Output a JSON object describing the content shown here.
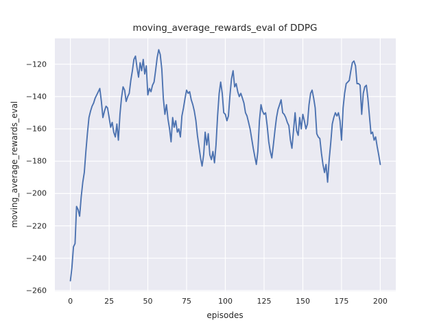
{
  "chart_data": {
    "type": "line",
    "title": "moving_average_rewards_eval of DDPG",
    "xlabel": "episodes",
    "ylabel": "moving_average_rewards_eval",
    "legend": "none",
    "grid": true,
    "style": "seaborn-darkgrid",
    "plot_bg_color": "#eaeaf2",
    "grid_color": "#ffffff",
    "line_color": "#4c72b0",
    "text_color": "#262626",
    "xlim": [
      -10,
      210
    ],
    "ylim": [
      -260.5,
      -104
    ],
    "x_ticks": [
      0,
      25,
      50,
      75,
      100,
      125,
      150,
      175,
      200
    ],
    "x_tick_labels": [
      "0",
      "25",
      "50",
      "75",
      "100",
      "125",
      "150",
      "175",
      "200"
    ],
    "y_ticks": [
      -120,
      -140,
      -160,
      -180,
      -200,
      -220,
      -240,
      -260
    ],
    "y_tick_labels": [
      "−120",
      "−140",
      "−160",
      "−180",
      "−200",
      "−220",
      "−240",
      "−260"
    ],
    "x_start": 0,
    "x_step": 1,
    "values": [
      -254,
      -246,
      -233,
      -231,
      -208,
      -210,
      -214,
      -202,
      -193,
      -187,
      -174,
      -163,
      -153,
      -149,
      -146,
      -144,
      -141,
      -139,
      -137,
      -135,
      -143,
      -153,
      -149,
      -146,
      -147,
      -153,
      -159,
      -156,
      -162,
      -165,
      -157,
      -167,
      -151,
      -141,
      -134,
      -136,
      -143,
      -140,
      -138,
      -130,
      -124,
      -117,
      -115,
      -122,
      -128,
      -119,
      -124,
      -117,
      -126,
      -121,
      -139,
      -135,
      -137,
      -133,
      -131,
      -124,
      -116,
      -111,
      -114,
      -123,
      -141,
      -151,
      -145,
      -154,
      -160,
      -168,
      -153,
      -159,
      -155,
      -162,
      -160,
      -165,
      -152,
      -147,
      -141,
      -136,
      -138,
      -137,
      -142,
      -145,
      -149,
      -155,
      -164,
      -171,
      -178,
      -183,
      -176,
      -162,
      -170,
      -163,
      -176,
      -179,
      -174,
      -181,
      -170,
      -152,
      -138,
      -131,
      -138,
      -150,
      -151,
      -155,
      -152,
      -139,
      -129,
      -124,
      -134,
      -132,
      -137,
      -140,
      -138,
      -141,
      -144,
      -150,
      -152,
      -156,
      -160,
      -166,
      -172,
      -177,
      -182,
      -174,
      -155,
      -145,
      -149,
      -151,
      -150,
      -158,
      -168,
      -174,
      -178,
      -170,
      -161,
      -153,
      -148,
      -145,
      -142,
      -150,
      -151,
      -153,
      -156,
      -158,
      -167,
      -172,
      -161,
      -150,
      -161,
      -164,
      -153,
      -160,
      -151,
      -155,
      -160,
      -157,
      -145,
      -138,
      -136,
      -141,
      -147,
      -163,
      -165,
      -166,
      -175,
      -182,
      -187,
      -182,
      -193,
      -179,
      -169,
      -157,
      -153,
      -150,
      -152,
      -150,
      -155,
      -167,
      -147,
      -138,
      -132,
      -131,
      -130,
      -124,
      -119,
      -118,
      -121,
      -132,
      -132,
      -133,
      -151,
      -138,
      -134,
      -133,
      -141,
      -152,
      -163,
      -162,
      -167,
      -165,
      -171,
      -176,
      -182
    ]
  }
}
